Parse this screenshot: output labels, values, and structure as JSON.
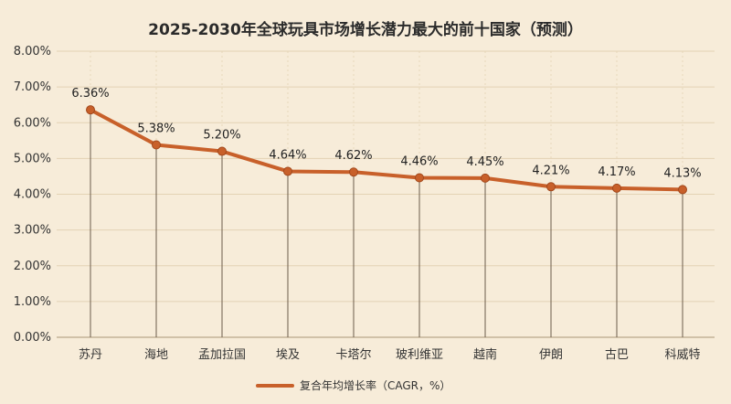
{
  "chart_data": {
    "type": "line",
    "title": "2025-2030年全球玩具市场增长潜力最大的前十国家（预测）",
    "categories": [
      "苏丹",
      "海地",
      "孟加拉国",
      "埃及",
      "卡塔尔",
      "玻利维亚",
      "越南",
      "伊朗",
      "古巴",
      "科威特"
    ],
    "series": [
      {
        "name": "复合年均增长率（CAGR，%）",
        "values": [
          6.36,
          5.38,
          5.2,
          4.64,
          4.62,
          4.46,
          4.45,
          4.21,
          4.17,
          4.13
        ],
        "data_labels": [
          "6.36%",
          "5.38%",
          "5.20%",
          "4.64%",
          "4.62%",
          "4.46%",
          "4.45%",
          "4.21%",
          "4.17%",
          "4.13%"
        ]
      }
    ],
    "xlabel": "",
    "ylabel": "",
    "ylim": [
      0,
      8
    ],
    "yticks": [
      0,
      1,
      2,
      3,
      4,
      5,
      6,
      7,
      8
    ],
    "ytick_labels": [
      "0.00%",
      "1.00%",
      "2.00%",
      "3.00%",
      "4.00%",
      "5.00%",
      "6.00%",
      "7.00%",
      "8.00%"
    ],
    "grid": true,
    "legend_position": "bottom-center",
    "colors": {
      "line": "#c8602a",
      "marker": "#c8602a",
      "grid": "#e3d2b4",
      "background": "#f7ecd9"
    }
  }
}
